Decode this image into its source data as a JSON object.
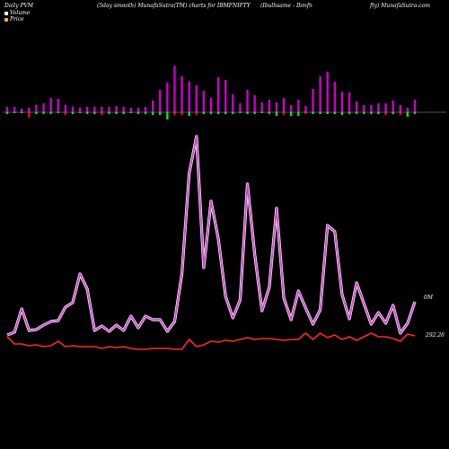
{
  "header": {
    "left": "Daily PVM",
    "middle": "(5day smooth) MunafaSutra(TM) charts for IBMFNIFTY",
    "right1": "(Ibulhsame -  Ibmfn",
    "right2": "fty) MunafaSutra.com"
  },
  "legend": {
    "volume_label": "Volume",
    "price_label": "Price",
    "volume_color": "#ffffff",
    "price_color": "#f4a460"
  },
  "colors": {
    "bar_up": "#cc00cc",
    "bar_down_red": "#ff0000",
    "bar_down_green": "#00ee00",
    "volume_line": "#cc44cc",
    "price_line": "#ff2a2a",
    "baseline": "#aaaaaa"
  },
  "chart_data": {
    "type": "bar+line",
    "volume_end_label": "0M",
    "price_end_label": "292.26",
    "bars": [
      {
        "up": 6,
        "down": 2,
        "down_color": "green"
      },
      {
        "up": 6,
        "down": 1,
        "down_color": "green"
      },
      {
        "up": 4,
        "down": 1,
        "down_color": "green"
      },
      {
        "up": 5,
        "down": 6,
        "down_color": "red"
      },
      {
        "up": 8,
        "down": 2,
        "down_color": "green"
      },
      {
        "up": 10,
        "down": 2,
        "down_color": "green"
      },
      {
        "up": 16,
        "down": 2,
        "down_color": "green"
      },
      {
        "up": 15,
        "down": 1,
        "down_color": "green"
      },
      {
        "up": 8,
        "down": 3,
        "down_color": "red"
      },
      {
        "up": 6,
        "down": 2,
        "down_color": "green"
      },
      {
        "up": 5,
        "down": 1,
        "down_color": "green"
      },
      {
        "up": 6,
        "down": 2,
        "down_color": "green"
      },
      {
        "up": 6,
        "down": 2,
        "down_color": "green"
      },
      {
        "up": 6,
        "down": 3,
        "down_color": "red"
      },
      {
        "up": 6,
        "down": 2,
        "down_color": "green"
      },
      {
        "up": 7,
        "down": 2,
        "down_color": "green"
      },
      {
        "up": 6,
        "down": 2,
        "down_color": "green"
      },
      {
        "up": 5,
        "down": 1,
        "down_color": "green"
      },
      {
        "up": 5,
        "down": 2,
        "down_color": "green"
      },
      {
        "up": 6,
        "down": 2,
        "down_color": "green"
      },
      {
        "up": 13,
        "down": 3,
        "down_color": "green"
      },
      {
        "up": 25,
        "down": 3,
        "down_color": "green"
      },
      {
        "up": 33,
        "down": 8,
        "down_color": "green"
      },
      {
        "up": 52,
        "down": 3,
        "down_color": "red"
      },
      {
        "up": 40,
        "down": 3,
        "down_color": "red"
      },
      {
        "up": 34,
        "down": 4,
        "down_color": "green"
      },
      {
        "up": 30,
        "down": 3,
        "down_color": "red"
      },
      {
        "up": 24,
        "down": 2,
        "down_color": "green"
      },
      {
        "up": 16,
        "down": 2,
        "down_color": "green"
      },
      {
        "up": 39,
        "down": 2,
        "down_color": "green"
      },
      {
        "up": 36,
        "down": 2,
        "down_color": "green"
      },
      {
        "up": 20,
        "down": 2,
        "down_color": "green"
      },
      {
        "up": 10,
        "down": 1,
        "down_color": "green"
      },
      {
        "up": 25,
        "down": 2,
        "down_color": "green"
      },
      {
        "up": 19,
        "down": 2,
        "down_color": "green"
      },
      {
        "up": 11,
        "down": 1,
        "down_color": "green"
      },
      {
        "up": 14,
        "down": 2,
        "down_color": "green"
      },
      {
        "up": 11,
        "down": 4,
        "down_color": "green"
      },
      {
        "up": 16,
        "down": 3,
        "down_color": "red"
      },
      {
        "up": 8,
        "down": 4,
        "down_color": "green"
      },
      {
        "up": 14,
        "down": 4,
        "down_color": "green"
      },
      {
        "up": 7,
        "down": 2,
        "down_color": "red"
      },
      {
        "up": 26,
        "down": 2,
        "down_color": "green"
      },
      {
        "up": 40,
        "down": 2,
        "down_color": "green"
      },
      {
        "up": 45,
        "down": 2,
        "down_color": "green"
      },
      {
        "up": 34,
        "down": 2,
        "down_color": "green"
      },
      {
        "up": 23,
        "down": 3,
        "down_color": "green"
      },
      {
        "up": 22,
        "down": 2,
        "down_color": "green"
      },
      {
        "up": 12,
        "down": 2,
        "down_color": "green"
      },
      {
        "up": 8,
        "down": 2,
        "down_color": "green"
      },
      {
        "up": 8,
        "down": 2,
        "down_color": "green"
      },
      {
        "up": 10,
        "down": 2,
        "down_color": "green"
      },
      {
        "up": 10,
        "down": 3,
        "down_color": "red"
      },
      {
        "up": 13,
        "down": 2,
        "down_color": "green"
      },
      {
        "up": 8,
        "down": 3,
        "down_color": "red"
      },
      {
        "up": 5,
        "down": 5,
        "down_color": "green"
      },
      {
        "up": 14,
        "down": 2,
        "down_color": "green"
      }
    ],
    "volume_line": [
      373,
      370,
      344,
      368,
      367,
      362,
      358,
      357,
      342,
      337,
      305,
      322,
      368,
      363,
      369,
      362,
      368,
      352,
      365,
      352,
      356,
      356,
      369,
      358,
      305,
      193,
      152,
      298,
      224,
      266,
      330,
      354,
      334,
      205,
      283,
      346,
      320,
      232,
      332,
      356,
      324,
      343,
      361,
      345,
      251,
      258,
      328,
      355,
      315,
      338,
      361,
      348,
      360,
      340,
      371,
      360,
      336
    ],
    "price_line": [
      375,
      383,
      383,
      385,
      384,
      386,
      385,
      380,
      386,
      385,
      386,
      386,
      386,
      388,
      386,
      387,
      386,
      388,
      389,
      389,
      388,
      388,
      388,
      389,
      389,
      378,
      386,
      384,
      380,
      381,
      379,
      380,
      378,
      376,
      378,
      377,
      377,
      378,
      379,
      378,
      378,
      371,
      378,
      371,
      376,
      373,
      378,
      375,
      379,
      375,
      371,
      375,
      375,
      377,
      380,
      372,
      374
    ]
  }
}
